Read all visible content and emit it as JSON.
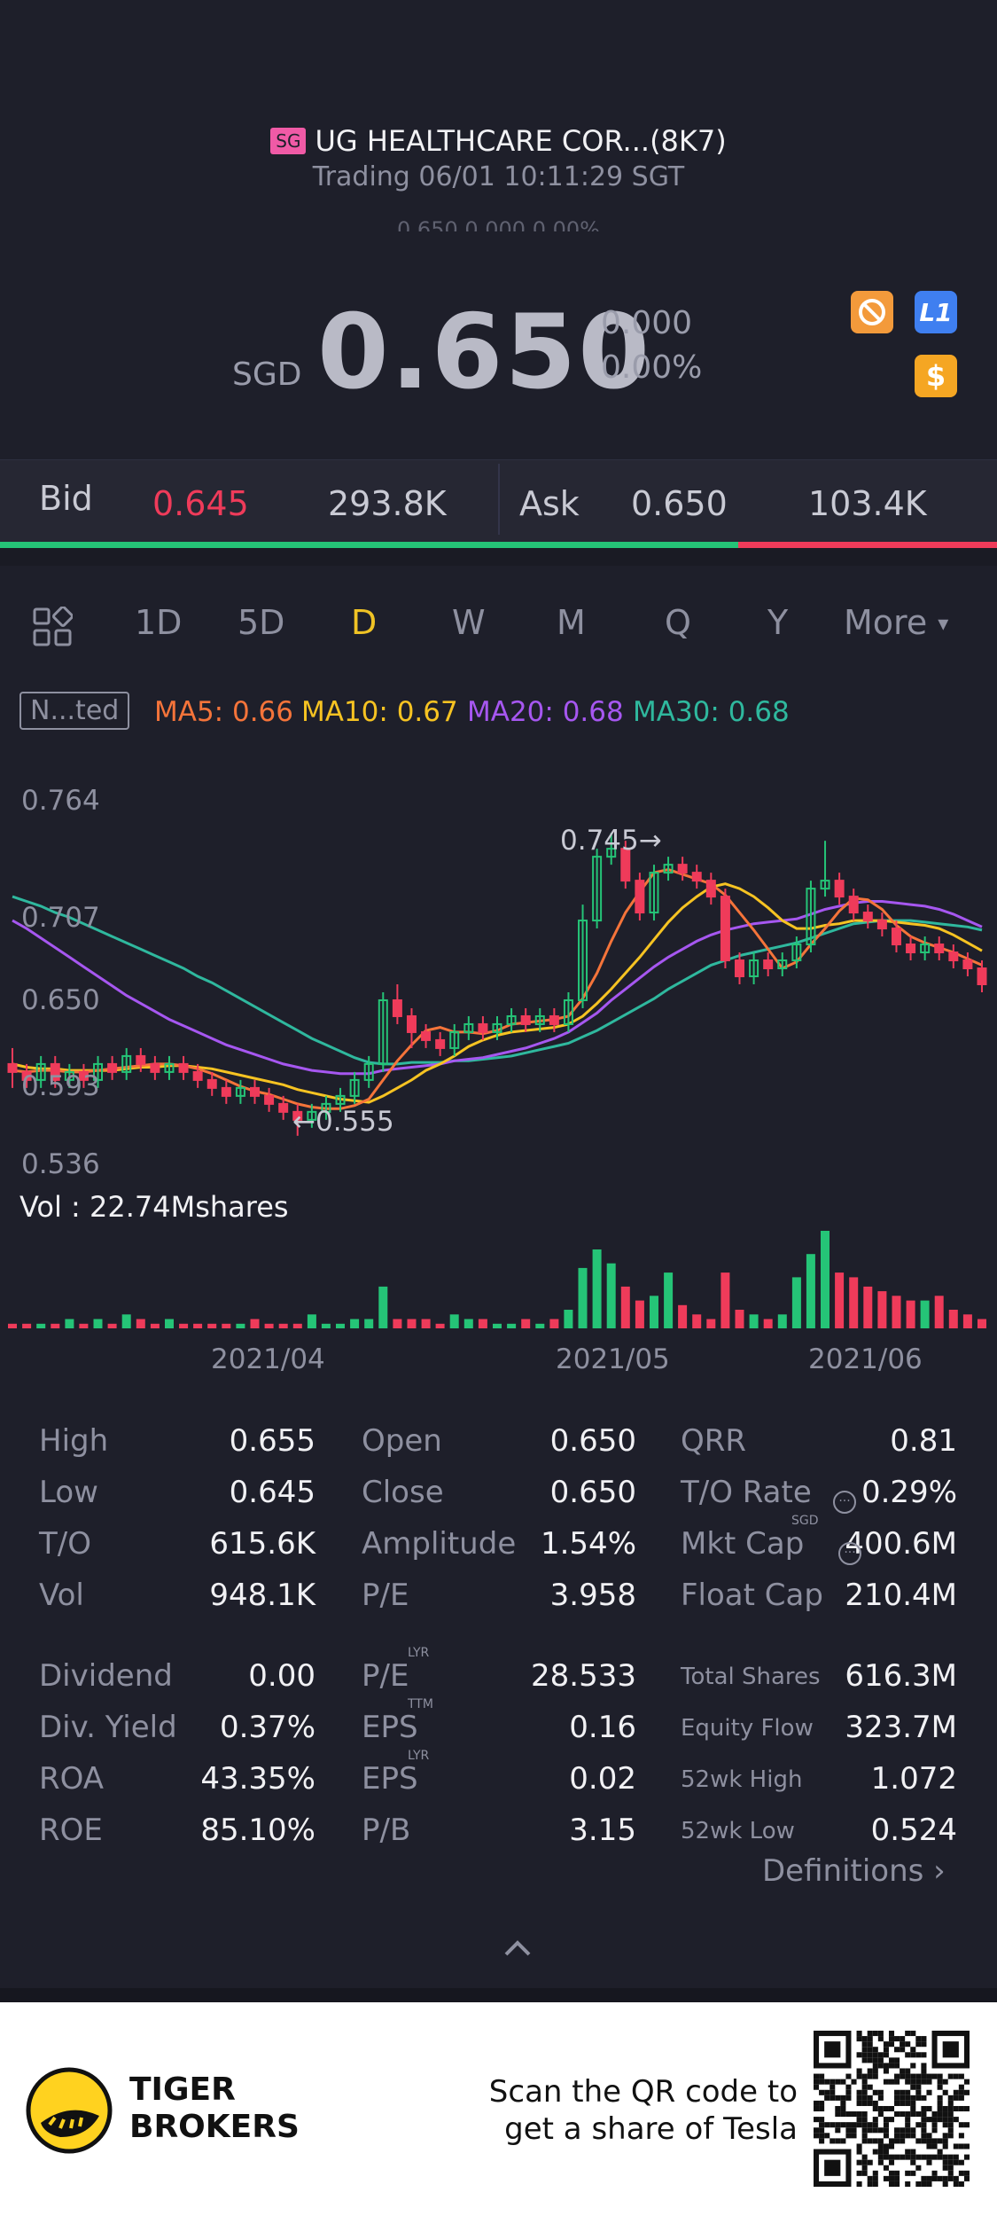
{
  "header": {
    "badge": "SG",
    "title": "UG HEALTHCARE COR...(8K7)",
    "trading": "Trading 06/01 10:11:29 SGT",
    "ghost": "0.650 0.000 0.00%"
  },
  "quote": {
    "currency": "SGD",
    "price": "0.650",
    "change": "0.000",
    "change_pct": "0.00%",
    "icons": [
      "ban-icon",
      "level1-icon",
      "dollar-icon"
    ],
    "level_label": "L1",
    "dollar_label": "$"
  },
  "bidask": {
    "bid_label": "Bid",
    "bid_price": "0.645",
    "bid_size": "293.8K",
    "ask_label": "Ask",
    "ask_price": "0.650",
    "ask_size": "103.4K",
    "bid_fraction": 0.74
  },
  "tabs": {
    "items": [
      "1D",
      "5D",
      "D",
      "W",
      "M",
      "Q",
      "Y",
      "More"
    ],
    "active": "D"
  },
  "legend": {
    "adjust": "N...ted",
    "ma5": "MA5: 0.66",
    "ma10": "MA10: 0.67",
    "ma20": "MA20: 0.68",
    "ma30": "MA30: 0.68"
  },
  "colors": {
    "up": "#25c477",
    "down": "#ef3b5a",
    "ma5": "#f5743a",
    "ma10": "#f6c322",
    "ma20": "#a657f0",
    "ma30": "#2fb89e",
    "accent": "#f0c325"
  },
  "chart_data": {
    "type": "candlestick",
    "y_ticks": [
      "0.764",
      "0.707",
      "0.650",
      "0.593",
      "0.536"
    ],
    "ylim": [
      0.536,
      0.764
    ],
    "x_ticks": [
      "2021/04",
      "2021/05",
      "2021/06"
    ],
    "annotations": {
      "high": "0.745",
      "low": "0.555"
    },
    "volume_label": "Vol  : 22.74Mshares",
    "candles": [
      [
        0.6,
        0.595,
        0.61,
        0.585
      ],
      [
        0.595,
        0.59,
        0.6,
        0.585
      ],
      [
        0.59,
        0.6,
        0.605,
        0.585
      ],
      [
        0.6,
        0.59,
        0.605,
        0.585
      ],
      [
        0.59,
        0.595,
        0.6,
        0.585
      ],
      [
        0.595,
        0.59,
        0.6,
        0.585
      ],
      [
        0.59,
        0.6,
        0.605,
        0.585
      ],
      [
        0.6,
        0.595,
        0.605,
        0.59
      ],
      [
        0.595,
        0.605,
        0.61,
        0.59
      ],
      [
        0.605,
        0.6,
        0.61,
        0.595
      ],
      [
        0.6,
        0.595,
        0.605,
        0.59
      ],
      [
        0.595,
        0.6,
        0.605,
        0.59
      ],
      [
        0.6,
        0.595,
        0.605,
        0.59
      ],
      [
        0.595,
        0.59,
        0.6,
        0.585
      ],
      [
        0.59,
        0.585,
        0.595,
        0.58
      ],
      [
        0.585,
        0.58,
        0.59,
        0.575
      ],
      [
        0.58,
        0.585,
        0.59,
        0.575
      ],
      [
        0.585,
        0.58,
        0.59,
        0.575
      ],
      [
        0.58,
        0.575,
        0.585,
        0.57
      ],
      [
        0.575,
        0.57,
        0.58,
        0.565
      ],
      [
        0.57,
        0.565,
        0.575,
        0.555
      ],
      [
        0.565,
        0.57,
        0.575,
        0.56
      ],
      [
        0.57,
        0.575,
        0.58,
        0.565
      ],
      [
        0.575,
        0.58,
        0.585,
        0.57
      ],
      [
        0.58,
        0.59,
        0.595,
        0.575
      ],
      [
        0.59,
        0.6,
        0.605,
        0.585
      ],
      [
        0.6,
        0.64,
        0.645,
        0.595
      ],
      [
        0.64,
        0.63,
        0.65,
        0.625
      ],
      [
        0.63,
        0.62,
        0.635,
        0.61
      ],
      [
        0.62,
        0.615,
        0.625,
        0.61
      ],
      [
        0.615,
        0.61,
        0.62,
        0.605
      ],
      [
        0.61,
        0.62,
        0.625,
        0.605
      ],
      [
        0.62,
        0.625,
        0.63,
        0.615
      ],
      [
        0.625,
        0.62,
        0.63,
        0.615
      ],
      [
        0.62,
        0.625,
        0.63,
        0.615
      ],
      [
        0.625,
        0.63,
        0.635,
        0.62
      ],
      [
        0.63,
        0.625,
        0.635,
        0.62
      ],
      [
        0.625,
        0.63,
        0.635,
        0.62
      ],
      [
        0.63,
        0.625,
        0.635,
        0.62
      ],
      [
        0.625,
        0.64,
        0.645,
        0.62
      ],
      [
        0.64,
        0.69,
        0.7,
        0.635
      ],
      [
        0.69,
        0.73,
        0.735,
        0.685
      ],
      [
        0.73,
        0.735,
        0.745,
        0.725
      ],
      [
        0.735,
        0.715,
        0.74,
        0.71
      ],
      [
        0.715,
        0.695,
        0.72,
        0.69
      ],
      [
        0.695,
        0.72,
        0.725,
        0.69
      ],
      [
        0.72,
        0.725,
        0.73,
        0.715
      ],
      [
        0.725,
        0.72,
        0.73,
        0.715
      ],
      [
        0.72,
        0.715,
        0.725,
        0.71
      ],
      [
        0.715,
        0.705,
        0.72,
        0.7
      ],
      [
        0.705,
        0.665,
        0.71,
        0.66
      ],
      [
        0.665,
        0.655,
        0.67,
        0.65
      ],
      [
        0.655,
        0.665,
        0.67,
        0.65
      ],
      [
        0.665,
        0.66,
        0.67,
        0.655
      ],
      [
        0.66,
        0.665,
        0.67,
        0.655
      ],
      [
        0.665,
        0.675,
        0.68,
        0.66
      ],
      [
        0.675,
        0.71,
        0.715,
        0.67
      ],
      [
        0.71,
        0.715,
        0.74,
        0.705
      ],
      [
        0.715,
        0.705,
        0.72,
        0.7
      ],
      [
        0.705,
        0.695,
        0.71,
        0.69
      ],
      [
        0.695,
        0.69,
        0.7,
        0.685
      ],
      [
        0.69,
        0.685,
        0.695,
        0.68
      ],
      [
        0.685,
        0.675,
        0.69,
        0.67
      ],
      [
        0.675,
        0.67,
        0.68,
        0.665
      ],
      [
        0.67,
        0.675,
        0.68,
        0.665
      ],
      [
        0.675,
        0.67,
        0.68,
        0.665
      ],
      [
        0.67,
        0.665,
        0.675,
        0.66
      ],
      [
        0.665,
        0.66,
        0.67,
        0.655
      ],
      [
        0.66,
        0.65,
        0.665,
        0.645
      ]
    ],
    "volume": [
      1,
      1,
      1,
      1,
      2,
      1,
      2,
      1,
      3,
      2,
      1,
      2,
      1,
      1,
      1,
      1,
      1,
      2,
      1,
      1,
      1,
      3,
      1,
      1,
      2,
      2,
      9,
      2,
      2,
      2,
      1,
      3,
      2,
      2,
      1,
      1,
      2,
      1,
      2,
      4,
      13,
      17,
      14,
      9,
      6,
      7,
      12,
      5,
      3,
      2,
      12,
      4,
      3,
      2,
      3,
      11,
      16,
      21,
      12,
      11,
      9,
      8,
      7,
      6,
      6,
      7,
      4,
      3,
      2
    ],
    "ma5": [
      0.596,
      0.595,
      0.596,
      0.596,
      0.595,
      0.595,
      0.596,
      0.597,
      0.598,
      0.599,
      0.6,
      0.6,
      0.599,
      0.597,
      0.594,
      0.59,
      0.586,
      0.583,
      0.581,
      0.578,
      0.575,
      0.573,
      0.572,
      0.572,
      0.574,
      0.578,
      0.59,
      0.602,
      0.612,
      0.621,
      0.623,
      0.62,
      0.62,
      0.619,
      0.621,
      0.625,
      0.626,
      0.627,
      0.628,
      0.63,
      0.641,
      0.657,
      0.677,
      0.695,
      0.708,
      0.72,
      0.722,
      0.719,
      0.716,
      0.713,
      0.706,
      0.695,
      0.684,
      0.672,
      0.66,
      0.664,
      0.675,
      0.685,
      0.696,
      0.704,
      0.703,
      0.697,
      0.687,
      0.68,
      0.676,
      0.673,
      0.67,
      0.666,
      0.662
    ],
    "ma10": [
      0.6,
      0.598,
      0.597,
      0.597,
      0.596,
      0.596,
      0.596,
      0.596,
      0.597,
      0.598,
      0.598,
      0.599,
      0.599,
      0.598,
      0.597,
      0.595,
      0.593,
      0.591,
      0.589,
      0.587,
      0.584,
      0.582,
      0.58,
      0.578,
      0.577,
      0.576,
      0.58,
      0.585,
      0.59,
      0.596,
      0.6,
      0.605,
      0.611,
      0.615,
      0.618,
      0.62,
      0.621,
      0.622,
      0.623,
      0.625,
      0.63,
      0.638,
      0.647,
      0.657,
      0.667,
      0.678,
      0.689,
      0.698,
      0.705,
      0.711,
      0.713,
      0.71,
      0.705,
      0.698,
      0.69,
      0.685,
      0.685,
      0.687,
      0.688,
      0.69,
      0.69,
      0.69,
      0.689,
      0.688,
      0.687,
      0.685,
      0.681,
      0.676,
      0.671
    ],
    "ma20": [
      0.69,
      0.685,
      0.679,
      0.673,
      0.667,
      0.661,
      0.655,
      0.649,
      0.643,
      0.638,
      0.633,
      0.628,
      0.624,
      0.62,
      0.616,
      0.612,
      0.609,
      0.606,
      0.603,
      0.6,
      0.598,
      0.596,
      0.595,
      0.594,
      0.594,
      0.594,
      0.596,
      0.597,
      0.598,
      0.599,
      0.6,
      0.602,
      0.603,
      0.604,
      0.606,
      0.608,
      0.61,
      0.613,
      0.616,
      0.62,
      0.626,
      0.632,
      0.64,
      0.647,
      0.654,
      0.661,
      0.667,
      0.672,
      0.677,
      0.681,
      0.684,
      0.686,
      0.688,
      0.689,
      0.69,
      0.691,
      0.694,
      0.697,
      0.699,
      0.701,
      0.702,
      0.702,
      0.701,
      0.7,
      0.699,
      0.697,
      0.694,
      0.69,
      0.686
    ],
    "ma30": [
      0.705,
      0.702,
      0.699,
      0.695,
      0.692,
      0.688,
      0.684,
      0.68,
      0.676,
      0.672,
      0.668,
      0.664,
      0.66,
      0.655,
      0.651,
      0.646,
      0.641,
      0.636,
      0.631,
      0.626,
      0.621,
      0.616,
      0.612,
      0.608,
      0.604,
      0.601,
      0.6,
      0.6,
      0.601,
      0.601,
      0.601,
      0.602,
      0.602,
      0.603,
      0.604,
      0.605,
      0.607,
      0.609,
      0.611,
      0.613,
      0.617,
      0.621,
      0.626,
      0.631,
      0.636,
      0.641,
      0.647,
      0.652,
      0.657,
      0.662,
      0.665,
      0.668,
      0.67,
      0.672,
      0.674,
      0.676,
      0.679,
      0.682,
      0.685,
      0.688,
      0.689,
      0.69,
      0.69,
      0.69,
      0.689,
      0.688,
      0.687,
      0.686,
      0.684
    ]
  },
  "stats": {
    "col1": [
      {
        "label": "High",
        "value": "0.655"
      },
      {
        "label": "Low",
        "value": "0.645"
      },
      {
        "label": "T/O",
        "value": "615.6K"
      },
      {
        "label": "Vol",
        "value": "948.1K"
      },
      {
        "label": "Dividend",
        "value": "0.00"
      },
      {
        "label": "Div. Yield",
        "value": "0.37%"
      },
      {
        "label": "ROA",
        "value": "43.35%"
      },
      {
        "label": "ROE",
        "value": "85.10%"
      }
    ],
    "col2": [
      {
        "label": "Open",
        "value": "0.650"
      },
      {
        "label": "Close",
        "value": "0.650"
      },
      {
        "label": "Amplitude",
        "value": "1.54%"
      },
      {
        "label": "P/E",
        "value": "3.958"
      },
      {
        "label": "P/E",
        "value": "28.533",
        "sup": "LYR"
      },
      {
        "label": "EPS",
        "value": "0.16",
        "sup": "TTM"
      },
      {
        "label": "EPS",
        "value": "0.02",
        "sup": "LYR"
      },
      {
        "label": "P/B",
        "value": "3.15"
      }
    ],
    "col3": [
      {
        "label": "QRR",
        "value": "0.81"
      },
      {
        "label": "T/O Rate",
        "value": "0.29%"
      },
      {
        "label": "Mkt Cap",
        "value": "400.6M",
        "sup": "SGD"
      },
      {
        "label": "Float Cap",
        "value": "210.4M"
      },
      {
        "label": "Total Shares",
        "value": "616.3M"
      },
      {
        "label": "Equity Flow",
        "value": "323.7M"
      },
      {
        "label": "52wk High",
        "value": "1.072"
      },
      {
        "label": "52wk Low",
        "value": "0.524"
      }
    ]
  },
  "definitions_label": "Definitions",
  "footer": {
    "brand_line1": "TIGER",
    "brand_line2": "BROKERS",
    "promo_line1": "Scan the QR code to",
    "promo_line2": "get a share of Tesla"
  }
}
